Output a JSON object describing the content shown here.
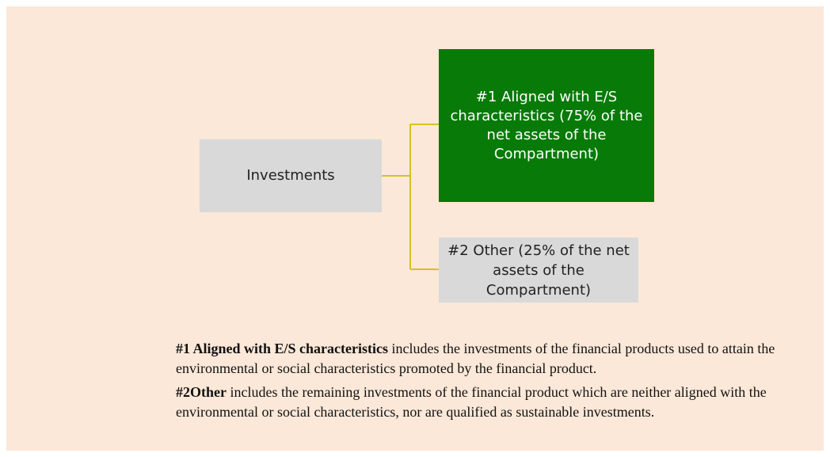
{
  "nodes": [
    {
      "label": "Investments"
    },
    {
      "label": "#1 Aligned with E/S characteristics (75% of the net assets of the Compartment)"
    },
    {
      "label": "#2 Other (25% of the net assets of the Compartment)"
    }
  ],
  "notes": [
    {
      "term": "#1 Aligned with E/S characteristics",
      "text": " includes the investments of the financial products used to attain the environmental or social characteristics promoted by the financial product."
    },
    {
      "term": "#2Other",
      "text": " includes the remaining investments of the financial product which are neither aligned with the environmental or social characteristics, nor are qualified as sustainable investments."
    }
  ]
}
